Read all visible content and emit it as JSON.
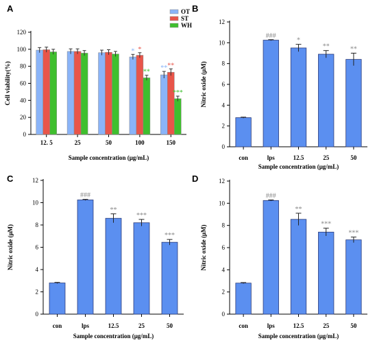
{
  "chart_data": [
    {
      "panel": "A",
      "type": "bar",
      "categories": [
        "12. 5",
        "25",
        "50",
        "100",
        "150"
      ],
      "series": [
        {
          "name": "OT",
          "values": [
            99,
            97.5,
            96,
            91,
            70
          ],
          "errors": [
            3,
            3,
            3,
            3,
            4
          ],
          "color": "#8ab4f8"
        },
        {
          "name": "ST",
          "values": [
            99.5,
            97.5,
            96.5,
            93,
            73
          ],
          "errors": [
            3,
            3,
            3,
            3,
            4
          ],
          "color": "#e8554a"
        },
        {
          "name": "WH",
          "values": [
            97,
            95.5,
            94.5,
            66.5,
            42
          ],
          "errors": [
            3,
            3,
            3,
            3,
            3
          ],
          "color": "#3fbf2e"
        }
      ],
      "annotations": [
        {
          "series": "OT",
          "category": "100",
          "text": "*"
        },
        {
          "series": "ST",
          "category": "100",
          "text": "*"
        },
        {
          "series": "WH",
          "category": "100",
          "text": "**"
        },
        {
          "series": "OT",
          "category": "150",
          "text": "**"
        },
        {
          "series": "ST",
          "category": "150",
          "text": "**"
        },
        {
          "series": "WH",
          "category": "150",
          "text": "***"
        }
      ],
      "xlabel": "Sample concentration (μg/mL)",
      "ylabel": "Cell viability(%)",
      "ylim": [
        0,
        120
      ],
      "yticks": [
        0,
        20,
        40,
        60,
        80,
        100,
        120
      ],
      "legend": "top-right",
      "grid": false
    },
    {
      "panel": "B",
      "type": "bar",
      "categories": [
        "con",
        "lps",
        "12.5",
        "25",
        "50"
      ],
      "values": [
        2.8,
        10.25,
        9.5,
        8.9,
        8.4
      ],
      "errors": [
        0.05,
        0.05,
        0.35,
        0.35,
        0.6
      ],
      "annotations": [
        "",
        "###",
        "*",
        "**",
        "**"
      ],
      "color": "#5b8ff0",
      "xlabel": "Sample concentration (μg/mL)",
      "ylabel": "Nitric oxide (μM)",
      "ylim": [
        0,
        12
      ],
      "yticks": [
        0,
        2,
        4,
        6,
        8,
        10,
        12
      ],
      "grid": false
    },
    {
      "panel": "C",
      "type": "bar",
      "categories": [
        "con",
        "lps",
        "12.5",
        "25",
        "50"
      ],
      "values": [
        2.8,
        10.25,
        8.6,
        8.2,
        6.45
      ],
      "errors": [
        0.05,
        0.05,
        0.4,
        0.3,
        0.25
      ],
      "annotations": [
        "",
        "###",
        "**",
        "***",
        "***"
      ],
      "color": "#5b8ff0",
      "xlabel": "Sample concentration (μg/mL)",
      "ylabel": "Nitric oxide (μM)",
      "ylim": [
        0,
        12
      ],
      "yticks": [
        0,
        2,
        4,
        6,
        8,
        10,
        12
      ],
      "grid": false
    },
    {
      "panel": "D",
      "type": "bar",
      "categories": [
        "con",
        "lps",
        "12.5",
        "25",
        "50"
      ],
      "values": [
        2.8,
        10.25,
        8.55,
        7.4,
        6.7
      ],
      "errors": [
        0.05,
        0.05,
        0.55,
        0.35,
        0.25
      ],
      "annotations": [
        "",
        "###",
        "**",
        "***",
        "***"
      ],
      "color": "#5b8ff0",
      "xlabel": "Sample concentration (μg/mL)",
      "ylabel": "Nitric oxide (μM)",
      "ylim": [
        0,
        12
      ],
      "yticks": [
        0,
        2,
        4,
        6,
        8,
        10,
        12
      ],
      "grid": false
    }
  ]
}
